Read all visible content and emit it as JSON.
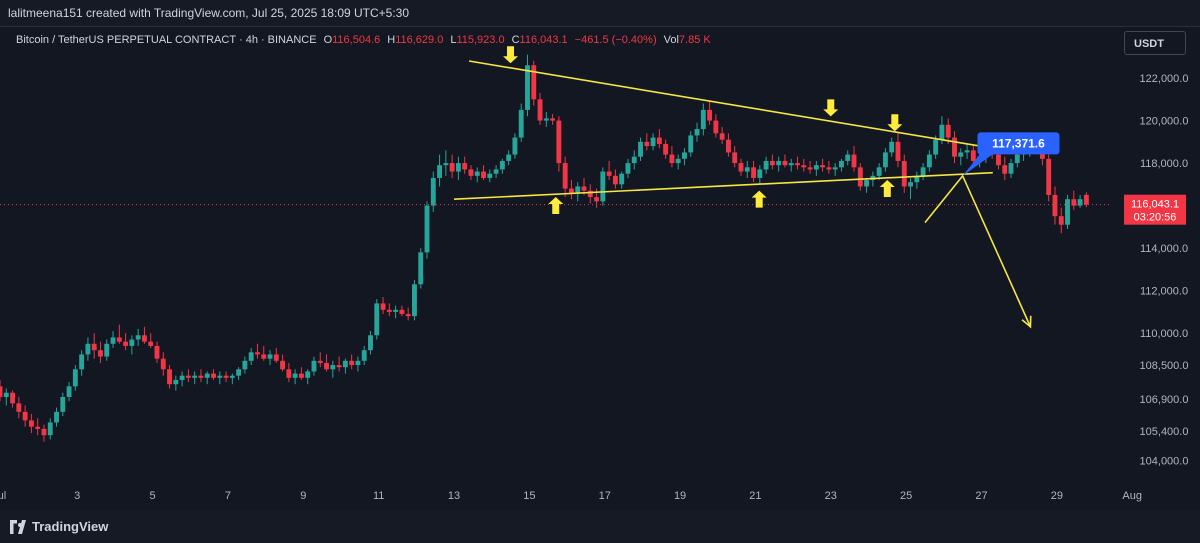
{
  "credit": {
    "text": "lalitmeena151 created with TradingView.com, Jul 25, 2025 18:09 UTC+5:30"
  },
  "legend": {
    "title": "Bitcoin / TetherUS PERPETUAL CONTRACT",
    "interval": "4h",
    "exchange": "BINANCE",
    "open_label": "O",
    "open": "116,504.6",
    "high_label": "H",
    "high": "116,629.0",
    "low_label": "L",
    "low": "115,923.0",
    "close_label": "C",
    "close": "116,043.1",
    "change": "−461.5 (−0.40%)",
    "volume_label": "Vol",
    "volume": "7.85 K"
  },
  "toolbar": {
    "currency_label": "USDT"
  },
  "footer": {
    "brand": "TradingView"
  },
  "colors": {
    "background": "#131722",
    "bull": "#26a69a",
    "bear": "#f23645",
    "trendline": "#f5e642",
    "arrow": "#ffeb3b",
    "callout": "#2962ff",
    "current_price_line": "#f23645",
    "axis_text": "#b2b5be"
  },
  "chart_data": {
    "type": "candlestick",
    "symbol": "BTCUSDT.P",
    "interval": "4h",
    "x_tick_labels": [
      "ul",
      "3",
      "5",
      "7",
      "9",
      "11",
      "13",
      "15",
      "17",
      "19",
      "21",
      "23",
      "25",
      "27",
      "29",
      "Aug"
    ],
    "x_tick_days": [
      1,
      3,
      5,
      7,
      9,
      11,
      13,
      15,
      17,
      19,
      21,
      23,
      25,
      27,
      29,
      31
    ],
    "y_tick_labels": [
      "122,000.0",
      "120,000.0",
      "118,000.0",
      "114,000.0",
      "112,000.0",
      "110,000.0",
      "108,500.0",
      "106,900.0",
      "105,400.0",
      "104,000.0"
    ],
    "y_tick_values": [
      122000,
      120000,
      118000,
      114000,
      112000,
      110000,
      108500,
      106900,
      105400,
      104000
    ],
    "ylim": [
      103000,
      124400
    ],
    "xlim_days": [
      0.95,
      32.8
    ],
    "current_price": {
      "value": 116043.1,
      "label": "116,043.1",
      "countdown": "03:20:56"
    },
    "callout": {
      "value": 117371.6,
      "label": "117,371.6",
      "day": 27.0
    },
    "candle_start_day": 0.95,
    "candle_step_days": 0.16667,
    "candles": [
      [
        107500,
        107800,
        106800,
        107000
      ],
      [
        107000,
        107400,
        106600,
        107200
      ],
      [
        107200,
        107300,
        106500,
        106700
      ],
      [
        106700,
        107000,
        106000,
        106300
      ],
      [
        106300,
        106600,
        105600,
        105900
      ],
      [
        105900,
        106200,
        105300,
        105600
      ],
      [
        105600,
        106000,
        105200,
        105500
      ],
      [
        105500,
        105700,
        104900,
        105200
      ],
      [
        105200,
        106000,
        105000,
        105800
      ],
      [
        105800,
        106500,
        105600,
        106300
      ],
      [
        106300,
        107200,
        106100,
        107000
      ],
      [
        107000,
        107700,
        106800,
        107500
      ],
      [
        107500,
        108500,
        107300,
        108300
      ],
      [
        108300,
        109200,
        108000,
        109000
      ],
      [
        109000,
        109800,
        108700,
        109500
      ],
      [
        109500,
        110000,
        108800,
        109200
      ],
      [
        109200,
        109600,
        108600,
        108900
      ],
      [
        108900,
        109700,
        108700,
        109500
      ],
      [
        109500,
        110100,
        109300,
        109800
      ],
      [
        109800,
        110400,
        109500,
        109600
      ],
      [
        109600,
        110000,
        109200,
        109400
      ],
      [
        109400,
        109900,
        109000,
        109700
      ],
      [
        109700,
        110200,
        109400,
        109900
      ],
      [
        109900,
        110300,
        109500,
        109600
      ],
      [
        109600,
        110000,
        109300,
        109400
      ],
      [
        109400,
        109600,
        108600,
        108800
      ],
      [
        108800,
        109100,
        108000,
        108300
      ],
      [
        108300,
        108500,
        107400,
        107600
      ],
      [
        107600,
        108000,
        107300,
        107800
      ],
      [
        107800,
        108200,
        107500,
        108000
      ],
      [
        108000,
        108300,
        107700,
        107900
      ],
      [
        107900,
        108200,
        107600,
        108000
      ],
      [
        108000,
        108300,
        107700,
        107900
      ],
      [
        107900,
        108200,
        107600,
        108100
      ],
      [
        108100,
        108300,
        107800,
        107900
      ],
      [
        107900,
        108200,
        107600,
        108000
      ],
      [
        108000,
        108200,
        107700,
        107900
      ],
      [
        107900,
        108100,
        107600,
        108000
      ],
      [
        108000,
        108400,
        107800,
        108300
      ],
      [
        108300,
        108900,
        108100,
        108700
      ],
      [
        108700,
        109300,
        108500,
        109100
      ],
      [
        109100,
        109500,
        108800,
        109000
      ],
      [
        109000,
        109400,
        108700,
        108800
      ],
      [
        108800,
        109200,
        108500,
        109000
      ],
      [
        109000,
        109300,
        108600,
        108700
      ],
      [
        108700,
        109000,
        108200,
        108300
      ],
      [
        108300,
        108600,
        107700,
        107900
      ],
      [
        107900,
        108300,
        107600,
        108100
      ],
      [
        108100,
        108400,
        107800,
        107900
      ],
      [
        107900,
        108300,
        107600,
        108200
      ],
      [
        108200,
        108900,
        108000,
        108700
      ],
      [
        108700,
        109100,
        108400,
        108600
      ],
      [
        108600,
        109000,
        108200,
        108300
      ],
      [
        108300,
        108700,
        107900,
        108500
      ],
      [
        108500,
        108900,
        108200,
        108400
      ],
      [
        108400,
        108800,
        108100,
        108700
      ],
      [
        108700,
        109000,
        108300,
        108500
      ],
      [
        108500,
        108900,
        108200,
        108700
      ],
      [
        108700,
        109400,
        108500,
        109200
      ],
      [
        109200,
        110100,
        109000,
        109900
      ],
      [
        109900,
        111600,
        109700,
        111400
      ],
      [
        111400,
        111700,
        110900,
        111100
      ],
      [
        111100,
        111400,
        110800,
        111000
      ],
      [
        111000,
        111300,
        110700,
        111100
      ],
      [
        111100,
        111300,
        110800,
        110900
      ],
      [
        110900,
        111200,
        110600,
        110800
      ],
      [
        110800,
        112500,
        110600,
        112300
      ],
      [
        112300,
        114000,
        112100,
        113800
      ],
      [
        113800,
        116200,
        113500,
        116000
      ],
      [
        116000,
        117600,
        115700,
        117300
      ],
      [
        117300,
        118400,
        116900,
        117900
      ],
      [
        117900,
        118600,
        117400,
        118000
      ],
      [
        118000,
        118400,
        117300,
        117600
      ],
      [
        117600,
        118300,
        117200,
        118000
      ],
      [
        118000,
        118300,
        117500,
        117700
      ],
      [
        117700,
        117900,
        117200,
        117400
      ],
      [
        117400,
        117800,
        117100,
        117600
      ],
      [
        117600,
        117900,
        117200,
        117300
      ],
      [
        117300,
        117700,
        117100,
        117500
      ],
      [
        117500,
        117900,
        117300,
        117700
      ],
      [
        117700,
        118200,
        117500,
        118100
      ],
      [
        118100,
        118600,
        117900,
        118400
      ],
      [
        118400,
        119400,
        118200,
        119200
      ],
      [
        119200,
        120800,
        119000,
        120500
      ],
      [
        120500,
        123100,
        120200,
        122600
      ],
      [
        122600,
        122800,
        120700,
        121000
      ],
      [
        121000,
        121300,
        119800,
        120000
      ],
      [
        120000,
        120400,
        119700,
        120100
      ],
      [
        120100,
        120300,
        119800,
        120000
      ],
      [
        120000,
        120200,
        117600,
        118000
      ],
      [
        118000,
        118300,
        116400,
        116800
      ],
      [
        116800,
        117200,
        116300,
        116600
      ],
      [
        116600,
        117100,
        116200,
        116900
      ],
      [
        116900,
        117300,
        116500,
        116700
      ],
      [
        116700,
        117000,
        116100,
        116400
      ],
      [
        116400,
        116800,
        115900,
        116200
      ],
      [
        116200,
        117800,
        116000,
        117600
      ],
      [
        117600,
        118100,
        117200,
        117400
      ],
      [
        117400,
        117700,
        116800,
        117000
      ],
      [
        117000,
        117600,
        116800,
        117500
      ],
      [
        117500,
        118200,
        117300,
        118000
      ],
      [
        118000,
        118600,
        117700,
        118300
      ],
      [
        118300,
        119200,
        118100,
        119000
      ],
      [
        119000,
        119400,
        118600,
        118800
      ],
      [
        118800,
        119400,
        118600,
        119200
      ],
      [
        119200,
        119600,
        118700,
        118900
      ],
      [
        118900,
        119100,
        118200,
        118400
      ],
      [
        118400,
        118800,
        117800,
        118000
      ],
      [
        118000,
        118400,
        117700,
        118200
      ],
      [
        118200,
        118700,
        117900,
        118500
      ],
      [
        118500,
        119500,
        118300,
        119300
      ],
      [
        119300,
        119900,
        119000,
        119600
      ],
      [
        119600,
        120800,
        119300,
        120500
      ],
      [
        120500,
        120900,
        119800,
        120000
      ],
      [
        120000,
        120300,
        119200,
        119400
      ],
      [
        119400,
        119700,
        118900,
        119100
      ],
      [
        119100,
        119400,
        118300,
        118500
      ],
      [
        118500,
        118800,
        117800,
        118000
      ],
      [
        118000,
        118200,
        117400,
        117600
      ],
      [
        117600,
        118100,
        117300,
        117800
      ],
      [
        117800,
        118100,
        117100,
        117300
      ],
      [
        117300,
        117900,
        117000,
        117700
      ],
      [
        117700,
        118300,
        117500,
        118100
      ],
      [
        118100,
        118400,
        117700,
        117900
      ],
      [
        117900,
        118300,
        117600,
        118100
      ],
      [
        118100,
        118400,
        117800,
        117900
      ],
      [
        117900,
        118200,
        117600,
        118000
      ],
      [
        118000,
        118300,
        117700,
        117900
      ],
      [
        117900,
        118200,
        117600,
        117800
      ],
      [
        117800,
        118100,
        117500,
        117700
      ],
      [
        117700,
        118100,
        117400,
        117900
      ],
      [
        117900,
        118200,
        117600,
        117800
      ],
      [
        117800,
        118100,
        117500,
        117700
      ],
      [
        117700,
        118000,
        117400,
        117800
      ],
      [
        117800,
        118200,
        117600,
        118100
      ],
      [
        118100,
        118600,
        117900,
        118400
      ],
      [
        118400,
        118800,
        117600,
        117800
      ],
      [
        117800,
        118000,
        116700,
        116900
      ],
      [
        116900,
        117300,
        116600,
        117200
      ],
      [
        117200,
        117600,
        116900,
        117400
      ],
      [
        117400,
        118000,
        117200,
        117800
      ],
      [
        117800,
        118700,
        117600,
        118500
      ],
      [
        118500,
        119200,
        118300,
        119000
      ],
      [
        119000,
        119400,
        117800,
        118100
      ],
      [
        118100,
        118400,
        116600,
        116900
      ],
      [
        116900,
        117300,
        116300,
        117100
      ],
      [
        117100,
        117600,
        116800,
        117400
      ],
      [
        117400,
        118000,
        117200,
        117800
      ],
      [
        117800,
        118600,
        117600,
        118400
      ],
      [
        118400,
        119300,
        118200,
        119100
      ],
      [
        119100,
        120200,
        118900,
        119800
      ],
      [
        119800,
        120100,
        118900,
        119200
      ],
      [
        119200,
        119500,
        118000,
        118300
      ],
      [
        118300,
        118700,
        117900,
        118500
      ],
      [
        118500,
        118900,
        118200,
        118600
      ],
      [
        118600,
        118900,
        117900,
        118100
      ],
      [
        118100,
        118500,
        117800,
        118300
      ],
      [
        118300,
        118700,
        118000,
        118500
      ],
      [
        118500,
        118900,
        118200,
        118400
      ],
      [
        118400,
        118700,
        117700,
        117900
      ],
      [
        117900,
        118300,
        117200,
        117500
      ],
      [
        117500,
        118200,
        117300,
        118000
      ],
      [
        118000,
        118600,
        117800,
        118400
      ],
      [
        118400,
        118800,
        118100,
        118500
      ],
      [
        118500,
        119400,
        118300,
        119100
      ],
      [
        119100,
        119300,
        118600,
        118700
      ],
      [
        118700,
        119000,
        117900,
        118200
      ],
      [
        118200,
        118400,
        116200,
        116500
      ],
      [
        116500,
        116900,
        115100,
        115500
      ],
      [
        115500,
        115900,
        114700,
        115100
      ],
      [
        115100,
        116500,
        114900,
        116300
      ],
      [
        116300,
        116700,
        115800,
        116000
      ],
      [
        116000,
        116500,
        115900,
        116300
      ],
      [
        116504.6,
        116629.0,
        115923.0,
        116043.1
      ]
    ],
    "annotations": {
      "resistance_line": {
        "from": {
          "day": 13.4,
          "price": 122800
        },
        "to": {
          "day": 27.3,
          "price": 118700
        }
      },
      "support_line": {
        "from": {
          "day": 13.0,
          "price": 116300
        },
        "to": {
          "day": 27.3,
          "price": 117550
        }
      },
      "down_arrows": [
        {
          "day": 14.5,
          "price": 122600
        },
        {
          "day": 23.0,
          "price": 120100
        },
        {
          "day": 24.7,
          "price": 119400
        }
      ],
      "up_arrows": [
        {
          "day": 15.7,
          "price": 116500
        },
        {
          "day": 21.1,
          "price": 116800
        },
        {
          "day": 24.5,
          "price": 117300
        }
      ],
      "projection_path": [
        {
          "day": 25.5,
          "price": 115200
        },
        {
          "day": 26.5,
          "price": 117400
        },
        {
          "day": 28.3,
          "price": 110300
        }
      ]
    }
  }
}
